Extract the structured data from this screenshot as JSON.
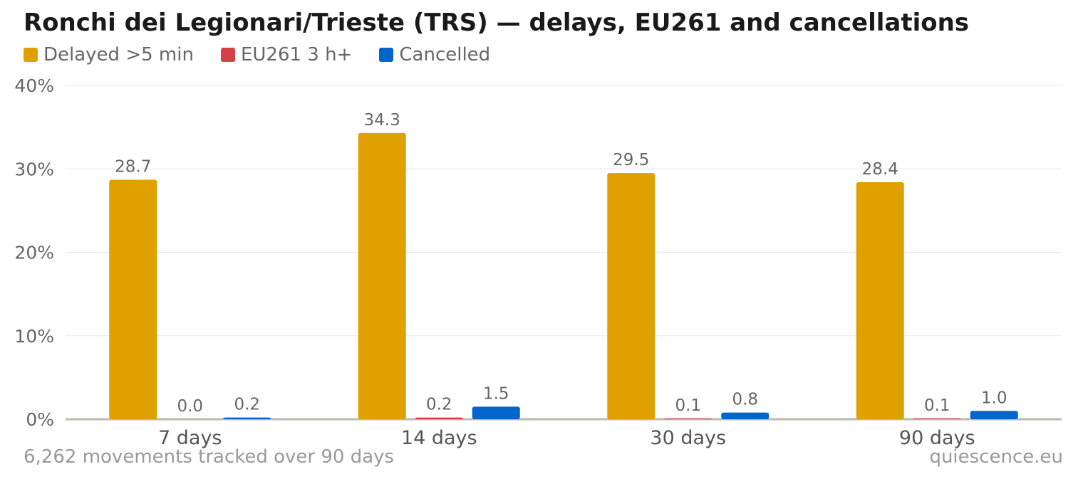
{
  "title": "Ronchi dei Legionari/Trieste (TRS) — delays, EU261 and cancellations",
  "footer": {
    "note": "6,262 movements tracked over 90 days",
    "source": "quiescence.eu"
  },
  "chart_data": {
    "type": "bar",
    "categories": [
      "7 days",
      "14 days",
      "30 days",
      "90 days"
    ],
    "series": [
      {
        "name": "Delayed >5 min",
        "color": "#e0a000",
        "values": [
          28.7,
          34.3,
          29.5,
          28.4
        ]
      },
      {
        "name": "EU261 3 h+",
        "color": "#d64045",
        "values": [
          0.0,
          0.2,
          0.1,
          0.1
        ]
      },
      {
        "name": "Cancelled",
        "color": "#0066cc",
        "values": [
          0.2,
          1.5,
          0.8,
          1.0
        ]
      }
    ],
    "ylim": [
      0,
      40
    ],
    "yticks": [
      0,
      10,
      20,
      30,
      40
    ],
    "ytick_labels": [
      "0%",
      "10%",
      "20%",
      "30%",
      "40%"
    ],
    "grid": true,
    "legend_position": "top-left"
  }
}
